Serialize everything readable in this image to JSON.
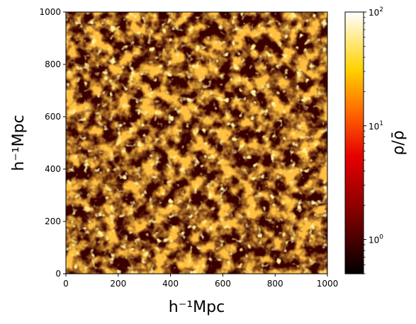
{
  "chart_data": {
    "type": "heatmap",
    "xlabel": "h⁻¹Mpc",
    "ylabel": "h⁻¹Mpc",
    "xlim": [
      0,
      1000
    ],
    "ylim": [
      0,
      1000
    ],
    "xticks": [
      "0",
      "200",
      "400",
      "600",
      "800",
      "1000"
    ],
    "yticks": [
      "0",
      "200",
      "400",
      "600",
      "800",
      "1000"
    ],
    "colorbar": {
      "label": "ρ/ρ̄",
      "scale": "log",
      "range": [
        0.5,
        100
      ],
      "major_ticks": [
        {
          "value": 1,
          "base": "10",
          "exp": "0"
        },
        {
          "value": 10,
          "base": "10",
          "exp": "1"
        },
        {
          "value": 100,
          "base": "10",
          "exp": "2"
        }
      ],
      "colormap": "hot",
      "colormap_stops": [
        "#000000",
        "#e60000",
        "#ffd200",
        "#ffffff"
      ]
    },
    "grid": false
  }
}
